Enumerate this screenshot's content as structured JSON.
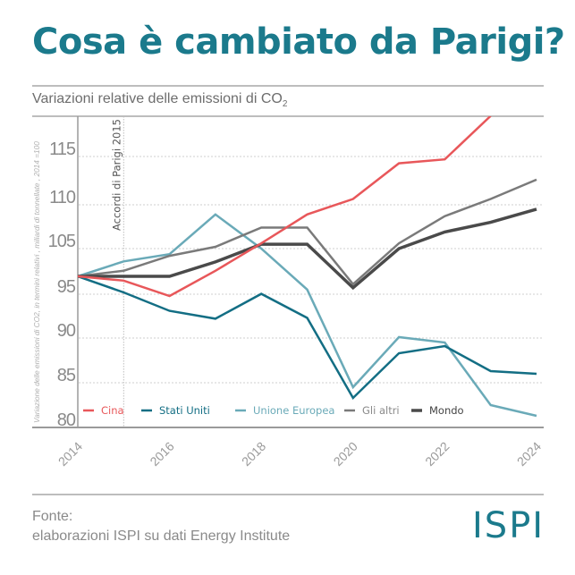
{
  "header": {
    "title": "Cosa è cambiato da Parigi?",
    "subtitle_main": "Variazioni relative delle emissioni di CO",
    "subtitle_sub": "2"
  },
  "chart_data": {
    "type": "line",
    "title": "Variazioni relative delle emissioni di CO2",
    "xlabel": "",
    "ylabel": "Variazione delle emissioni di CO2, in termini relativi , miliardi di tonnellate , 2014 =100",
    "x": [
      2014,
      2015,
      2016,
      2017,
      2018,
      2019,
      2020,
      2021,
      2022,
      2023,
      2024
    ],
    "x_tick_labels": [
      "2014",
      "2016",
      "2018",
      "2020",
      "2022",
      "2024"
    ],
    "y_tick_labels": [
      "115",
      "110",
      "105",
      "95",
      "90",
      "85",
      "80"
    ],
    "ylim": [
      80,
      119
    ],
    "grid": true,
    "legend_position": "bottom",
    "annotation": {
      "x": 2015,
      "label": "Accordi di Parigi 2015"
    },
    "series": [
      {
        "name": "Cina",
        "color": "#e8575a",
        "values": [
          100,
          98.8,
          94.8,
          101,
          105.6,
          108.9,
          110.6,
          114.3,
          114.7,
          119.2,
          null
        ]
      },
      {
        "name": "Stati Uniti",
        "color": "#136e84",
        "values": [
          100,
          95.5,
          93.1,
          92.2,
          95.1,
          92.3,
          83.3,
          88.3,
          89.1,
          86.3,
          86.0
        ]
      },
      {
        "name": "Unione Europea",
        "color": "#6aaab8",
        "values": [
          100,
          102.7,
          104,
          108.9,
          105,
          96.3,
          84.5,
          90.1,
          89.5,
          82.5,
          81.3
        ]
      },
      {
        "name": "Gli altri",
        "color": "#7a7a7a",
        "values": [
          100,
          101,
          103.7,
          105.2,
          107.4,
          107.4,
          97.8,
          105.6,
          108.7,
          110.6,
          112.6
        ]
      },
      {
        "name": "Mondo",
        "color": "#4a4a4a",
        "values": [
          100,
          100,
          100,
          102.6,
          105.5,
          105.5,
          96.8,
          105,
          106.9,
          108,
          109.5
        ]
      }
    ]
  },
  "footer": {
    "source_label": "Fonte:",
    "source_text": "elaborazioni ISPI su dati Energy Institute",
    "logo": "ISPI"
  }
}
